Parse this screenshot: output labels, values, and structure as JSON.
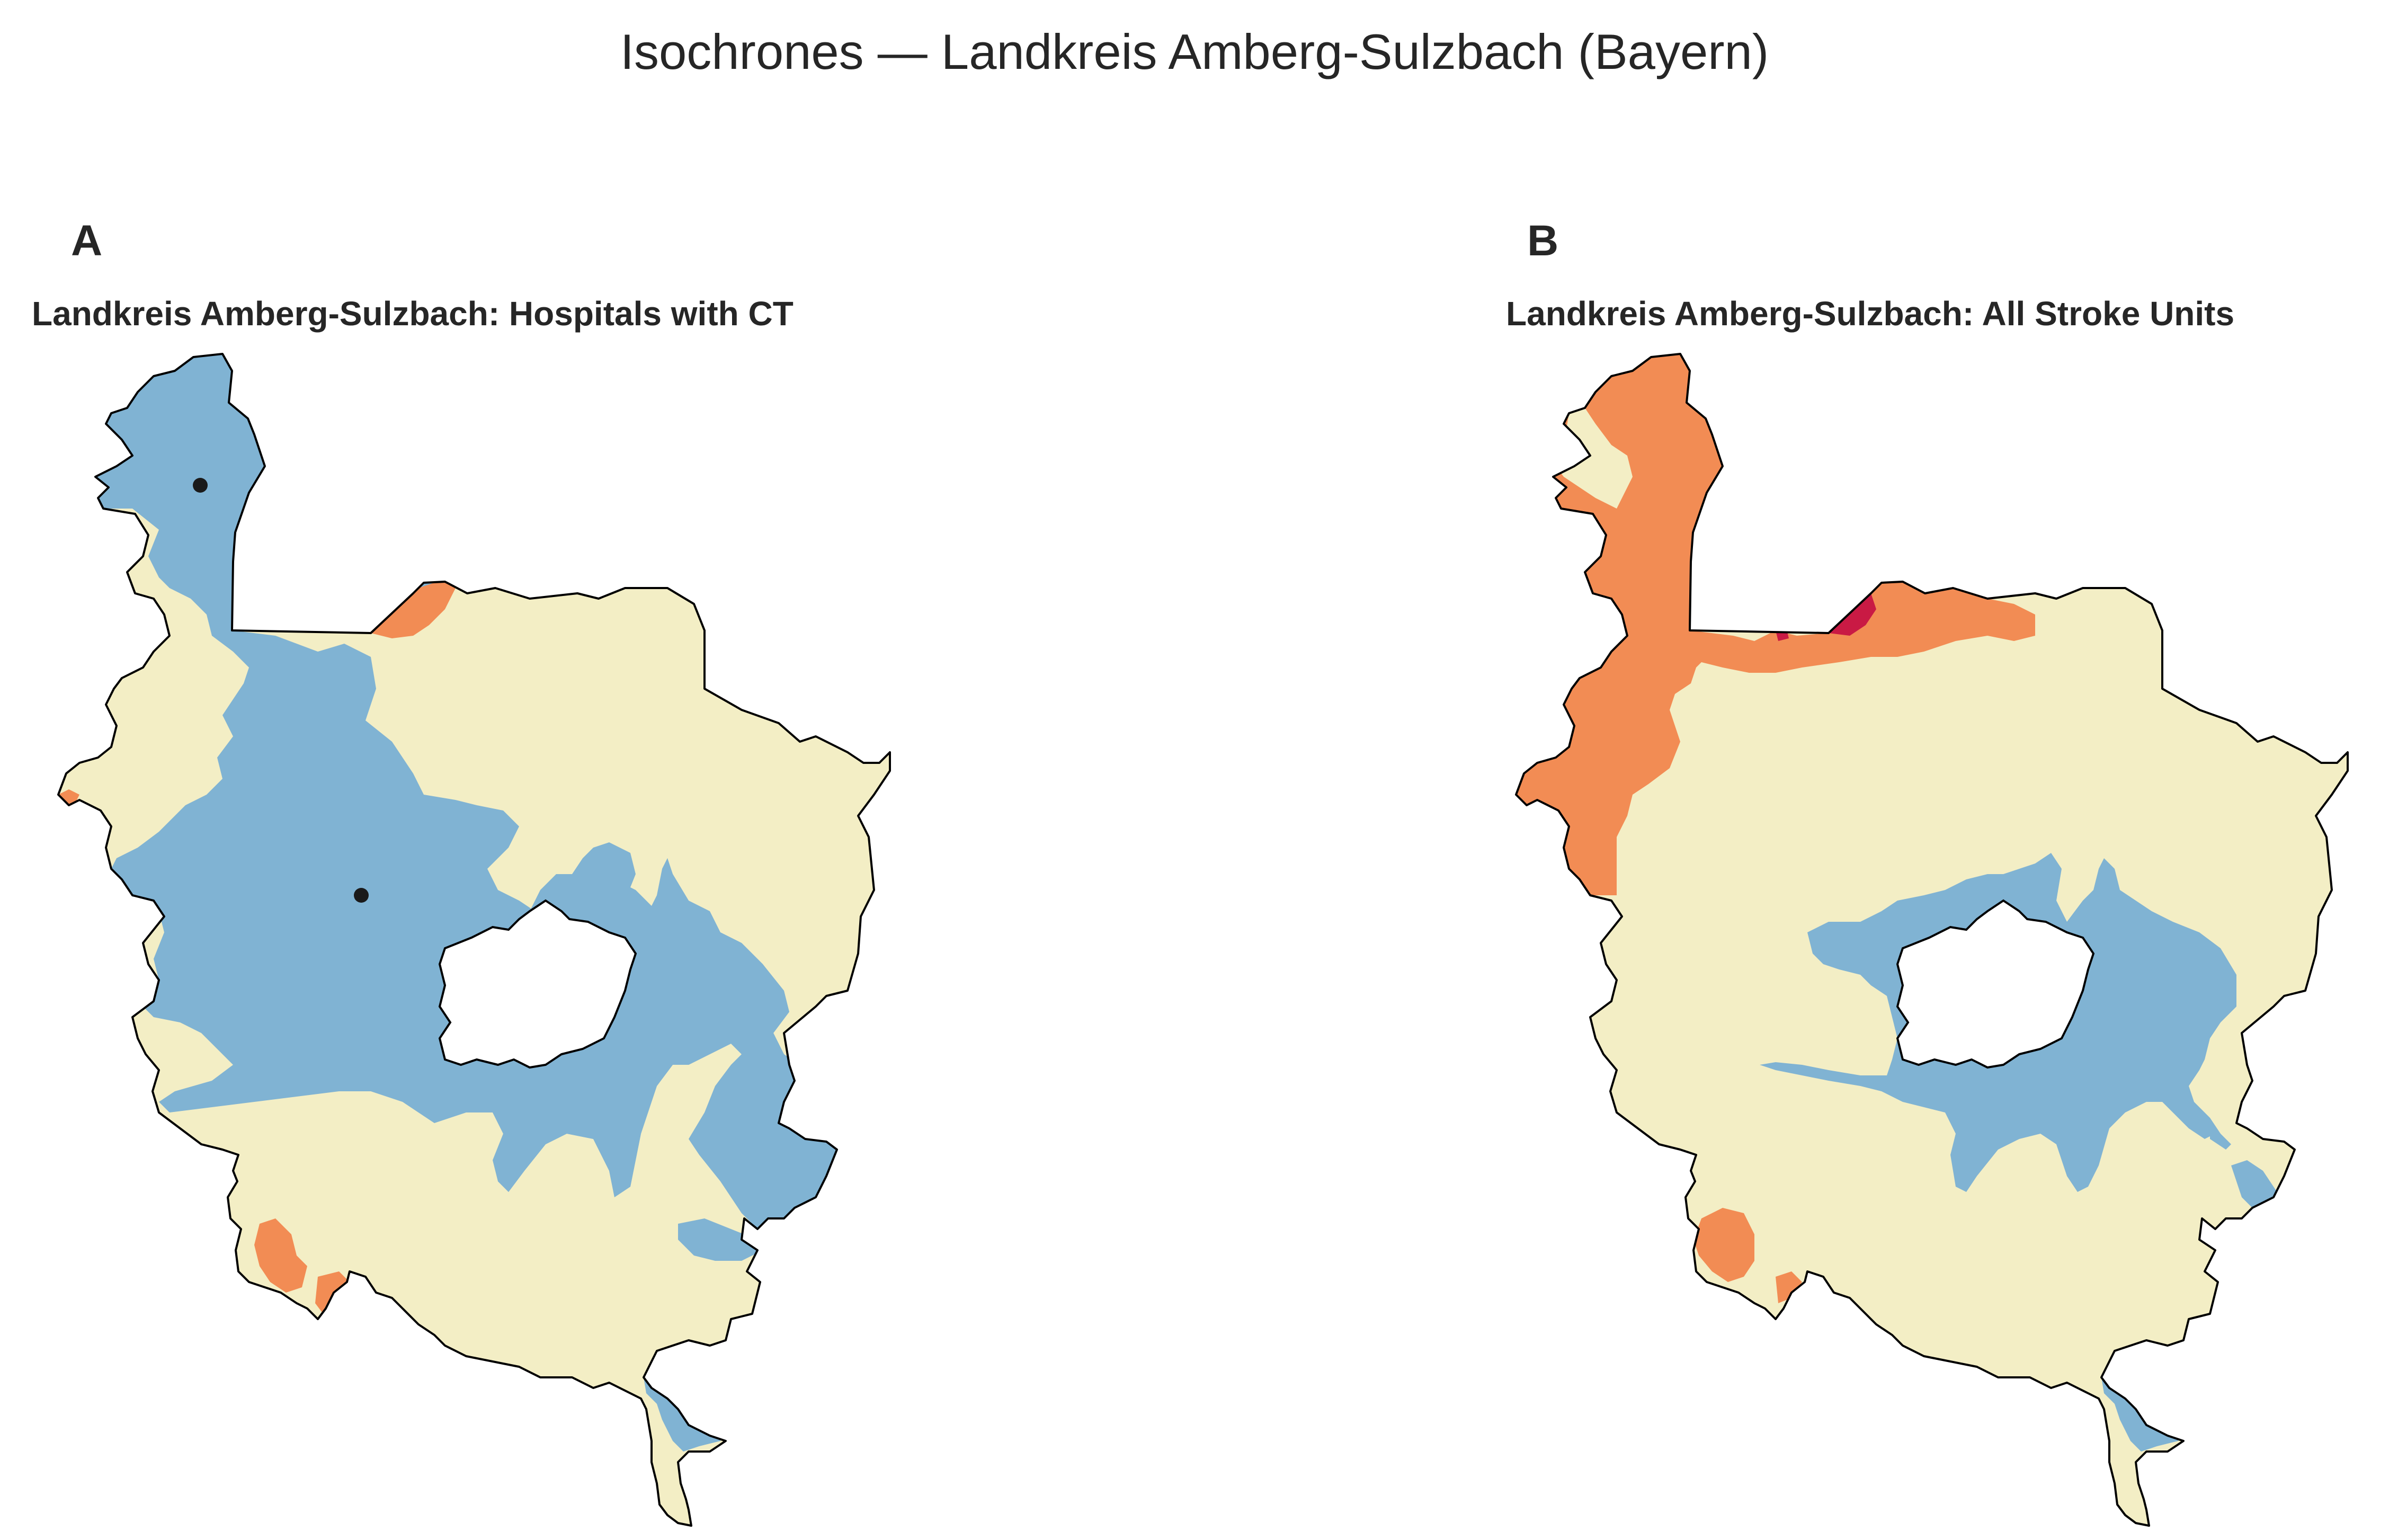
{
  "figure": {
    "title": "Isochrones — Landkreis Amberg-Sulzbach (Bayern)"
  },
  "colors": {
    "band_fast": "#80b3d3",
    "band_mid": "#f3eec5",
    "band_slow": "#f28c54",
    "band_slowest": "#c91a44",
    "hole": "#ffffff",
    "border": "#000000",
    "marker": "#1a1a1a"
  },
  "panels": [
    {
      "letter": "A",
      "title": "Landkreis Amberg-Sulzbach: Hospitals with CT",
      "facility_markers": 2
    },
    {
      "letter": "B",
      "title": "Landkreis Amberg-Sulzbach: All Stroke Units",
      "facility_markers": 0
    }
  ]
}
